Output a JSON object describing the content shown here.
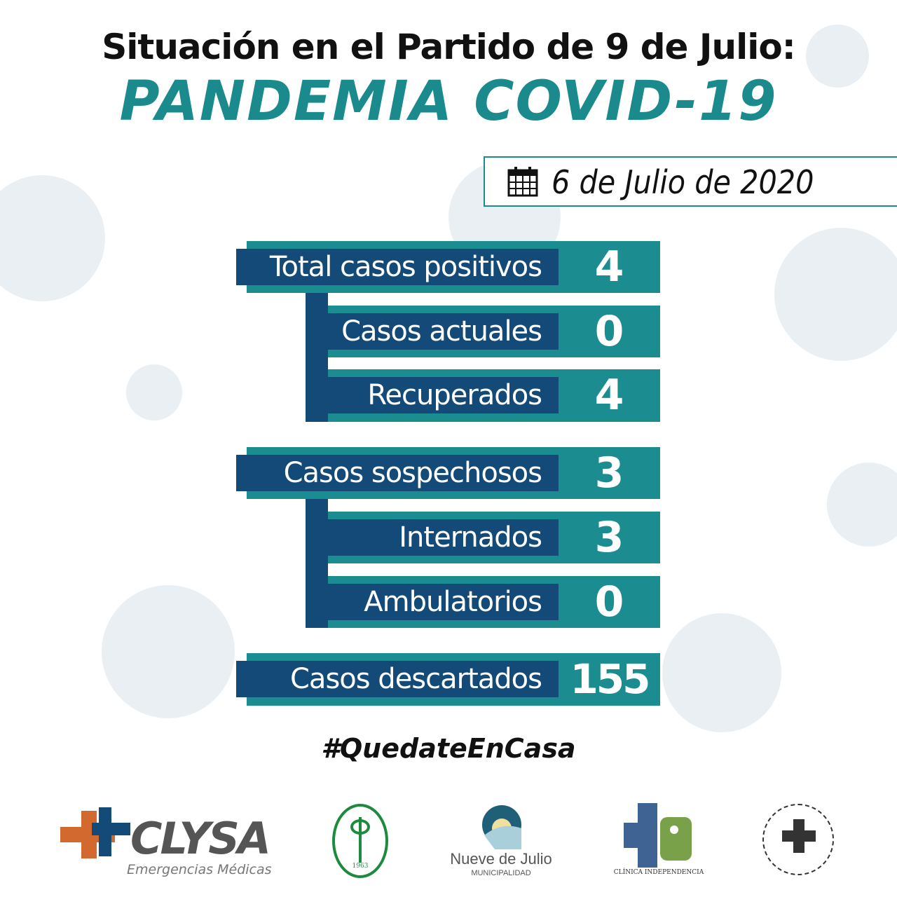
{
  "header": {
    "title": "Situación en el Partido de 9 de Julio:",
    "subtitle": "PANDEMIA COVID-19"
  },
  "date": {
    "icon": "calendar-icon",
    "text": "6 de Julio de 2020"
  },
  "groups": [
    {
      "rows": [
        {
          "label": "Total casos positivos",
          "value": "4"
        },
        {
          "label": "Casos actuales",
          "value": "0"
        },
        {
          "label": "Recuperados",
          "value": "4"
        }
      ]
    },
    {
      "rows": [
        {
          "label": "Casos sospechosos",
          "value": "3"
        },
        {
          "label": "Internados",
          "value": "3"
        },
        {
          "label": "Ambulatorios",
          "value": "0"
        }
      ]
    },
    {
      "rows": [
        {
          "label": "Casos descartados",
          "value": "155"
        }
      ]
    }
  ],
  "hashtag": "#QuedateEnCasa",
  "logos": [
    {
      "name": "CLYSA",
      "tagline": "Emergencias Médicas"
    },
    {
      "name": "Círculo Médico de 9 de Julio",
      "year": "1963"
    },
    {
      "name": "Nueve de Julio",
      "tagline": "MUNICIPALIDAD"
    },
    {
      "name": "CLÍNICA INDEPENDENCIA"
    },
    {
      "name": "Nueve de Julio seal"
    }
  ],
  "colors": {
    "teal": "#1b8c8f",
    "navy": "#134a78",
    "text": "#111111"
  }
}
